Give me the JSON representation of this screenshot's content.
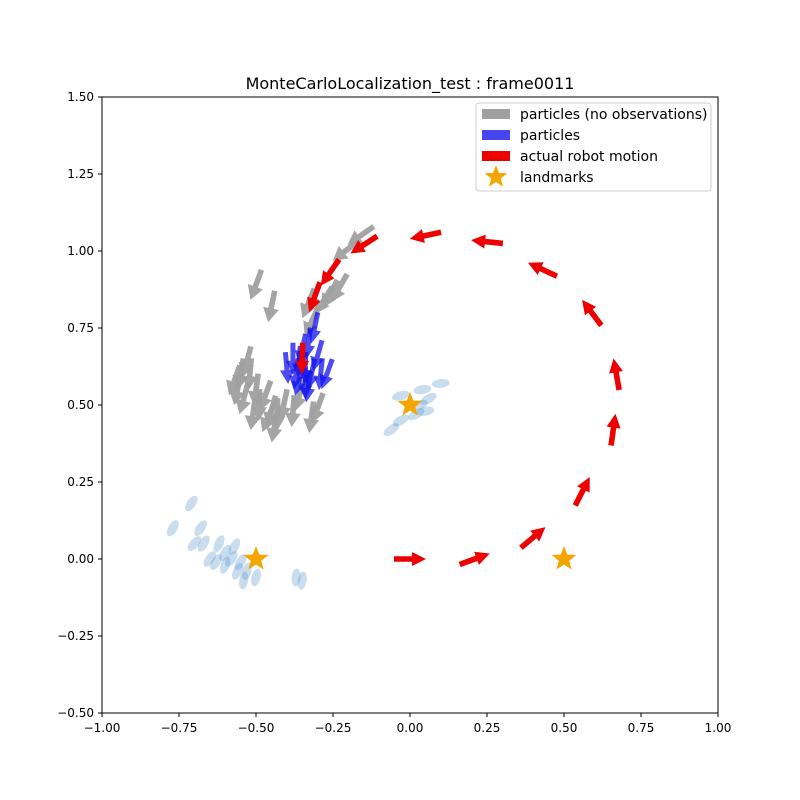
{
  "chart_data": {
    "type": "scatter",
    "title": "MonteCarloLocalization_test : frame0011",
    "xlabel": "",
    "ylabel": "",
    "xlim": [
      -1.0,
      1.0
    ],
    "ylim": [
      -0.5,
      1.5
    ],
    "x_ticks": [
      "−1.00",
      "−0.75",
      "−0.50",
      "−0.25",
      "0.00",
      "0.25",
      "0.50",
      "0.75",
      "1.00"
    ],
    "y_ticks": [
      "−0.50",
      "−0.25",
      "0.00",
      "0.25",
      "0.50",
      "0.75",
      "1.00",
      "1.25",
      "1.50"
    ],
    "x_tick_values": [
      -1.0,
      -0.75,
      -0.5,
      -0.25,
      0.0,
      0.25,
      0.5,
      0.75,
      1.0
    ],
    "y_tick_values": [
      -0.5,
      -0.25,
      0.0,
      0.25,
      0.5,
      0.75,
      1.0,
      1.25,
      1.5
    ],
    "grid": false,
    "legend_position": "top-right",
    "colors": {
      "gray_particles": "#a0a0a0",
      "particles": "#1010ee",
      "robot": "#ee0000",
      "landmarks": "#f5a500",
      "ellipses": "#4f8fc9"
    },
    "legend": [
      {
        "label": "particles (no observations)",
        "kind": "bar",
        "color": "#a0a0a0"
      },
      {
        "label": "particles",
        "kind": "bar",
        "color": "#4646f0"
      },
      {
        "label": "actual robot motion",
        "kind": "bar",
        "color": "#ee0000"
      },
      {
        "label": "landmarks",
        "kind": "star",
        "color": "#f5a500"
      }
    ],
    "landmarks": [
      {
        "x": -0.5,
        "y": 0.0
      },
      {
        "x": 0.0,
        "y": 0.5
      },
      {
        "x": 0.5,
        "y": 0.0
      }
    ],
    "robot_motion": [
      {
        "x": 0.0,
        "y": 0.0,
        "angle": 0
      },
      {
        "x": 0.21,
        "y": 0.0,
        "angle": 20
      },
      {
        "x": 0.4,
        "y": 0.07,
        "angle": 40
      },
      {
        "x": 0.56,
        "y": 0.22,
        "angle": 63
      },
      {
        "x": 0.66,
        "y": 0.42,
        "angle": 82
      },
      {
        "x": 0.67,
        "y": 0.6,
        "angle": 100
      },
      {
        "x": 0.59,
        "y": 0.8,
        "angle": 127
      },
      {
        "x": 0.43,
        "y": 0.94,
        "angle": 155
      },
      {
        "x": 0.25,
        "y": 1.03,
        "angle": 174
      },
      {
        "x": 0.05,
        "y": 1.05,
        "angle": 192
      },
      {
        "x": -0.15,
        "y": 1.02,
        "angle": 213
      },
      {
        "x": -0.26,
        "y": 0.93,
        "angle": 235
      },
      {
        "x": -0.31,
        "y": 0.85,
        "angle": 250
      },
      {
        "x": -0.35,
        "y": 0.65,
        "angle": 268
      }
    ],
    "particles_no_observations": [
      {
        "x": -0.16,
        "y": 1.05,
        "angle": 215
      },
      {
        "x": -0.21,
        "y": 1.0,
        "angle": 218
      },
      {
        "x": -0.23,
        "y": 0.88,
        "angle": 240
      },
      {
        "x": -0.26,
        "y": 0.86,
        "angle": 242
      },
      {
        "x": -0.28,
        "y": 0.84,
        "angle": 238
      },
      {
        "x": -0.5,
        "y": 0.89,
        "angle": 250
      },
      {
        "x": -0.45,
        "y": 0.82,
        "angle": 258
      },
      {
        "x": -0.33,
        "y": 0.83,
        "angle": 248
      },
      {
        "x": -0.32,
        "y": 0.77,
        "angle": 245
      },
      {
        "x": -0.53,
        "y": 0.64,
        "angle": 255
      },
      {
        "x": -0.55,
        "y": 0.6,
        "angle": 260
      },
      {
        "x": -0.57,
        "y": 0.58,
        "angle": 250
      },
      {
        "x": -0.52,
        "y": 0.6,
        "angle": 265
      },
      {
        "x": -0.56,
        "y": 0.55,
        "angle": 258
      },
      {
        "x": -0.5,
        "y": 0.55,
        "angle": 262
      },
      {
        "x": -0.54,
        "y": 0.52,
        "angle": 255
      },
      {
        "x": -0.47,
        "y": 0.53,
        "angle": 250
      },
      {
        "x": -0.49,
        "y": 0.5,
        "angle": 268
      },
      {
        "x": -0.45,
        "y": 0.48,
        "angle": 255
      },
      {
        "x": -0.51,
        "y": 0.47,
        "angle": 262
      },
      {
        "x": -0.46,
        "y": 0.46,
        "angle": 248
      },
      {
        "x": -0.43,
        "y": 0.47,
        "angle": 270
      },
      {
        "x": -0.41,
        "y": 0.5,
        "angle": 258
      },
      {
        "x": -0.38,
        "y": 0.48,
        "angle": 265
      },
      {
        "x": -0.3,
        "y": 0.49,
        "angle": 250
      },
      {
        "x": -0.32,
        "y": 0.46,
        "angle": 262
      },
      {
        "x": -0.36,
        "y": 0.53,
        "angle": 255
      },
      {
        "x": -0.44,
        "y": 0.43,
        "angle": 260
      }
    ],
    "particles": [
      {
        "x": -0.31,
        "y": 0.75,
        "angle": 258
      },
      {
        "x": -0.33,
        "y": 0.7,
        "angle": 262
      },
      {
        "x": -0.38,
        "y": 0.65,
        "angle": 270
      },
      {
        "x": -0.36,
        "y": 0.64,
        "angle": 266
      },
      {
        "x": -0.35,
        "y": 0.68,
        "angle": 258
      },
      {
        "x": -0.3,
        "y": 0.66,
        "angle": 254
      },
      {
        "x": -0.4,
        "y": 0.62,
        "angle": 275
      },
      {
        "x": -0.37,
        "y": 0.6,
        "angle": 262
      },
      {
        "x": -0.34,
        "y": 0.62,
        "angle": 268
      },
      {
        "x": -0.32,
        "y": 0.6,
        "angle": 258
      },
      {
        "x": -0.29,
        "y": 0.6,
        "angle": 264
      },
      {
        "x": -0.27,
        "y": 0.6,
        "angle": 250
      },
      {
        "x": -0.36,
        "y": 0.58,
        "angle": 255
      },
      {
        "x": -0.34,
        "y": 0.57,
        "angle": 270
      },
      {
        "x": -0.33,
        "y": 0.56,
        "angle": 262
      }
    ],
    "uncertainty_ellipses": [
      {
        "x": -0.71,
        "y": 0.18,
        "angle": 55
      },
      {
        "x": -0.77,
        "y": 0.1,
        "angle": 60
      },
      {
        "x": -0.68,
        "y": 0.1,
        "angle": 55
      },
      {
        "x": -0.7,
        "y": 0.05,
        "angle": 50
      },
      {
        "x": -0.67,
        "y": 0.05,
        "angle": 60
      },
      {
        "x": -0.65,
        "y": 0.0,
        "angle": 55
      },
      {
        "x": -0.62,
        "y": 0.05,
        "angle": 65
      },
      {
        "x": -0.6,
        "y": 0.02,
        "angle": 60
      },
      {
        "x": -0.63,
        "y": -0.01,
        "angle": 58
      },
      {
        "x": -0.57,
        "y": 0.04,
        "angle": 62
      },
      {
        "x": -0.58,
        "y": 0.0,
        "angle": 55
      },
      {
        "x": -0.55,
        "y": -0.01,
        "angle": 60
      },
      {
        "x": -0.6,
        "y": -0.02,
        "angle": 70
      },
      {
        "x": -0.56,
        "y": -0.04,
        "angle": 65
      },
      {
        "x": -0.53,
        "y": -0.04,
        "angle": 75
      },
      {
        "x": -0.54,
        "y": -0.07,
        "angle": 80
      },
      {
        "x": -0.5,
        "y": -0.06,
        "angle": 75
      },
      {
        "x": -0.37,
        "y": -0.06,
        "angle": 85
      },
      {
        "x": -0.35,
        "y": -0.07,
        "angle": 80
      },
      {
        "x": 0.04,
        "y": 0.55,
        "angle": 10
      },
      {
        "x": 0.1,
        "y": 0.57,
        "angle": 5
      },
      {
        "x": 0.06,
        "y": 0.52,
        "angle": 30
      },
      {
        "x": 0.03,
        "y": 0.5,
        "angle": 20
      },
      {
        "x": 0.05,
        "y": 0.48,
        "angle": 10
      },
      {
        "x": 0.02,
        "y": 0.47,
        "angle": 30
      },
      {
        "x": -0.03,
        "y": 0.53,
        "angle": 15
      },
      {
        "x": -0.03,
        "y": 0.45,
        "angle": 30
      },
      {
        "x": -0.06,
        "y": 0.42,
        "angle": 35
      }
    ]
  }
}
